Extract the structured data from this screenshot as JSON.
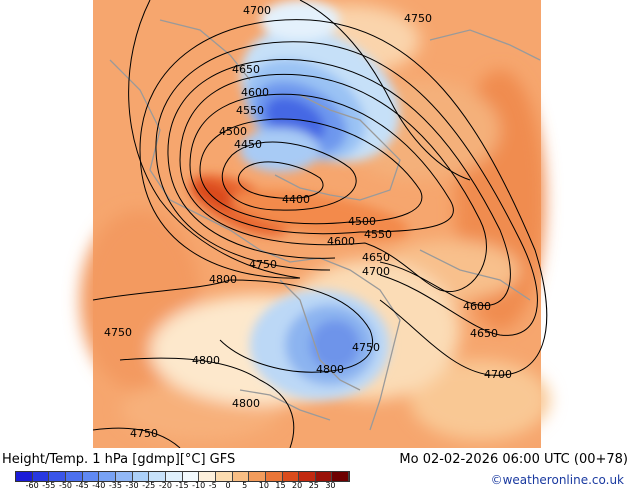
{
  "title": "Height/Temp. 1 hPa [gdmp][°C] GFS",
  "valid_time": "Mo 02-02-2026 06:00 UTC (00+78)",
  "credit": "©weatheronline.co.uk",
  "contour_labels": [
    {
      "text": "4700"
    },
    {
      "text": "4750"
    },
    {
      "text": "4650"
    },
    {
      "text": "4600"
    },
    {
      "text": "4550"
    },
    {
      "text": "4500"
    },
    {
      "text": "4450"
    },
    {
      "text": "4400"
    },
    {
      "text": "4500"
    },
    {
      "text": "4550"
    },
    {
      "text": "4600"
    },
    {
      "text": "4650"
    },
    {
      "text": "4700"
    },
    {
      "text": "4750"
    },
    {
      "text": "4800"
    },
    {
      "text": "4600"
    },
    {
      "text": "4650"
    },
    {
      "text": "4700"
    },
    {
      "text": "4750"
    },
    {
      "text": "4750"
    },
    {
      "text": "4800"
    },
    {
      "text": "4800"
    },
    {
      "text": "4800"
    },
    {
      "text": "4750"
    }
  ],
  "legend": {
    "ticks": [
      "-60",
      "-55",
      "-50",
      "-45",
      "-40",
      "-35",
      "-30",
      "-25",
      "-20",
      "-15",
      "-10",
      "-5",
      "0",
      "5",
      "10",
      "15",
      "20",
      "25",
      "30"
    ],
    "colors": [
      "#1c1cd8",
      "#2838e0",
      "#3a55e8",
      "#4c70ef",
      "#6089f2",
      "#78a2f4",
      "#92b8f6",
      "#acd0f8",
      "#c8e2fa",
      "#e0f0fc",
      "#f2f9fd",
      "#fdf0dc",
      "#fcdcb0",
      "#f8be84",
      "#f39c5c",
      "#ea7638",
      "#da4c1c",
      "#c22a10",
      "#9a1208",
      "#6e0000"
    ]
  }
}
